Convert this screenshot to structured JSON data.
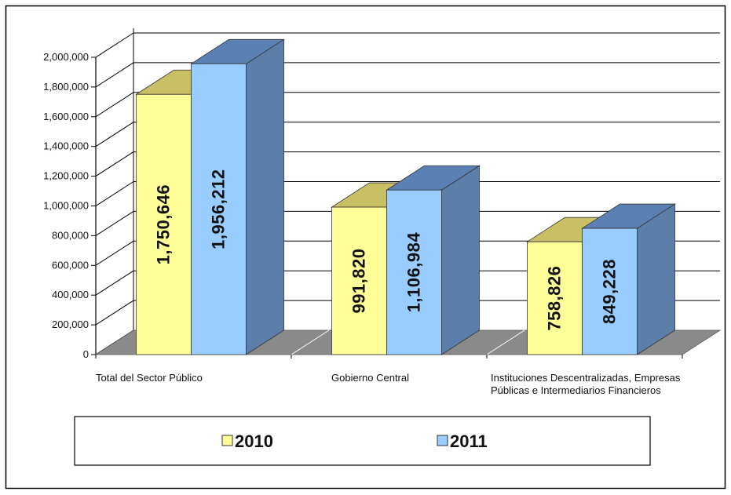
{
  "chart_data": {
    "type": "bar",
    "title": "",
    "xlabel": "",
    "ylabel": "",
    "ylim": [
      0,
      2000000
    ],
    "yticks": [
      0,
      200000,
      400000,
      600000,
      800000,
      1000000,
      1200000,
      1400000,
      1600000,
      1800000,
      2000000
    ],
    "ytick_labels": [
      "0",
      "200,000",
      "400,000",
      "600,000",
      "800,000",
      "1,000,000",
      "1,200,000",
      "1,400,000",
      "1,600,000",
      "1,800,000",
      "2,000,000"
    ],
    "categories": [
      [
        "Total del Sector Público"
      ],
      [
        "Gobierno Central"
      ],
      [
        "Instituciones Descentralizadas, Empresas",
        "Públicas e Intermediarios Financieros"
      ]
    ],
    "series": [
      {
        "name": "2010",
        "values": [
          1750646,
          991820,
          758826
        ],
        "labels": [
          "1,750,646",
          "991,820",
          "758,826"
        ]
      },
      {
        "name": "2011",
        "values": [
          1956212,
          1106984,
          849228
        ],
        "labels": [
          "1,956,212",
          "1,106,984",
          "849,228"
        ]
      }
    ],
    "colors": {
      "series_front": [
        "#ffff99",
        "#99ccff"
      ],
      "series_top": [
        "#c9c066",
        "#5a80b4"
      ],
      "series_side": [
        "#cfc36e",
        "#5c7fa9"
      ],
      "floor": "#8a8a8a",
      "gridline": "#000000"
    },
    "legend": {
      "placement": "bottom",
      "items": [
        "2010",
        "2011"
      ]
    },
    "grid": true,
    "three_d": true
  }
}
